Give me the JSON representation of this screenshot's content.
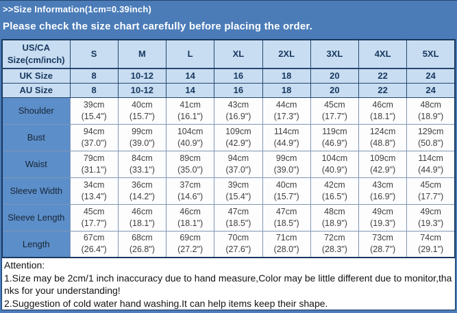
{
  "page": {
    "title": ">>Size Information(1cm=0.39inch)",
    "subtitle": "Please check the size chart carefully before placing the order."
  },
  "table": {
    "corner_header": [
      "US/CA",
      "Size(cm/inch)"
    ],
    "size_columns": [
      "S",
      "M",
      "L",
      "XL",
      "2XL",
      "3XL",
      "4XL",
      "5XL"
    ],
    "size_rows": [
      {
        "label": "UK Size",
        "values": [
          "8",
          "10-12",
          "14",
          "16",
          "18",
          "20",
          "22",
          "24"
        ]
      },
      {
        "label": "AU Size",
        "values": [
          "8",
          "10-12",
          "14",
          "16",
          "18",
          "20",
          "22",
          "24"
        ]
      }
    ],
    "measure_rows": [
      {
        "label": "Shoulder",
        "cm": [
          "39cm",
          "40cm",
          "41cm",
          "43cm",
          "44cm",
          "45cm",
          "46cm",
          "48cm"
        ],
        "inch": [
          "(15.4\")",
          "(15.7\")",
          "(16.1\")",
          "(16.9\")",
          "(17.3\")",
          "(17.7\")",
          "(18.1\")",
          "(18.9\")"
        ]
      },
      {
        "label": "Bust",
        "cm": [
          "94cm",
          "99cm",
          "104cm",
          "109cm",
          "114cm",
          "119cm",
          "124cm",
          "129cm"
        ],
        "inch": [
          "(37.0\")",
          "(39.0\")",
          "(40.9\")",
          "(42.9\")",
          "(44.9\")",
          "(46.9\")",
          "(48.8\")",
          "(50.8\")"
        ]
      },
      {
        "label": "Waist",
        "cm": [
          "79cm",
          "84cm",
          "89cm",
          "94cm",
          "99cm",
          "104cm",
          "109cm",
          "114cm"
        ],
        "inch": [
          "(31.1\")",
          "(33.1\")",
          "(35.0\")",
          "(37.0\")",
          "(39.0\")",
          "(40.9\")",
          "(42.9\")",
          "(44.9\")"
        ]
      },
      {
        "label": "Sleeve Width",
        "cm": [
          "34cm",
          "36cm",
          "37cm",
          "39cm",
          "40cm",
          "42cm",
          "43cm",
          "45cm"
        ],
        "inch": [
          "(13.4\")",
          "(14.2\")",
          "(14.6\")",
          "(15.4\")",
          "(15.7\")",
          "(16.5\")",
          "(16.9\")",
          "(17.7\")"
        ]
      },
      {
        "label": "Sleeve Length",
        "cm": [
          "45cm",
          "46cm",
          "46cm",
          "47cm",
          "47cm",
          "48cm",
          "49cm",
          "49cm"
        ],
        "inch": [
          "(17.7\")",
          "(18.1\")",
          "(18.1\")",
          "(18.5\")",
          "(18.5\")",
          "(18.9\")",
          "(19.3\")",
          "(19.3\")"
        ]
      },
      {
        "label": "Length",
        "cm": [
          "67cm",
          "68cm",
          "69cm",
          "70cm",
          "71cm",
          "72cm",
          "73cm",
          "74cm"
        ],
        "inch": [
          "(26.4\")",
          "(26.8\")",
          "(27.2\")",
          "(27.6\")",
          "(28.0\")",
          "(28.3\")",
          "(28.7\")",
          "(29.1\")"
        ]
      }
    ]
  },
  "attention": {
    "heading": "Attention:",
    "notes": [
      "1.Size may be 2cm/1 inch inaccuracy due to hand measure,Color may be little different due to monitor,thanks for your understanding!",
      "2.Suggestion of cold water hand washing.It can help items keep their shape."
    ]
  },
  "colors": {
    "page_background": "#4b7cb8",
    "header_cell_background": "#c8ddf1",
    "row_label_background": "#5c8ec9",
    "table_border_dark": "#17375e",
    "data_border": "#7e96b6",
    "header_text": "#17375e",
    "data_text": "#3f3f3f",
    "title_text": "#ffffff"
  }
}
